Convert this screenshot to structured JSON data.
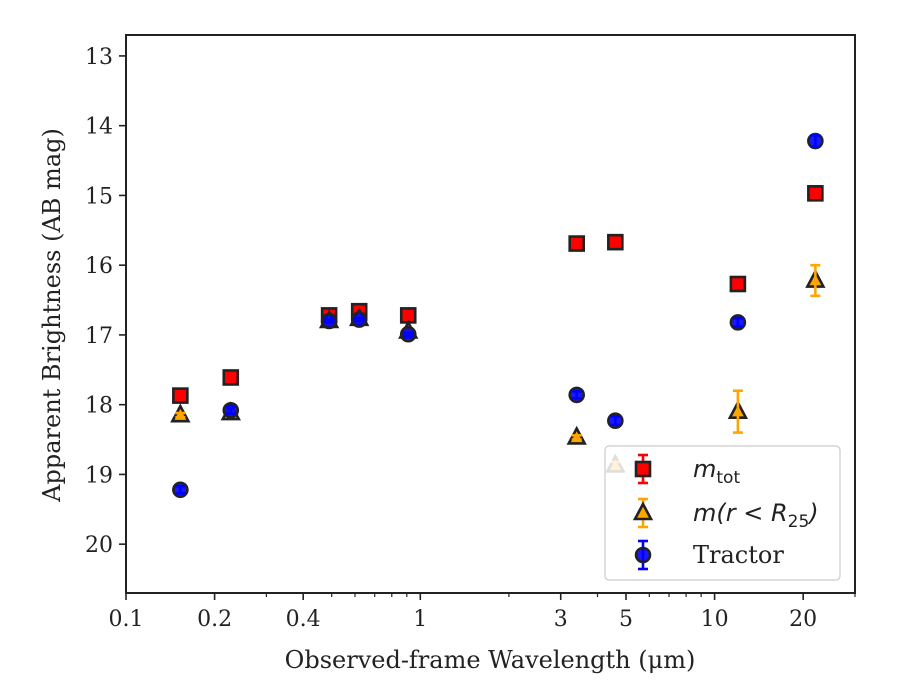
{
  "chart_data": {
    "type": "scatter",
    "title": "",
    "xlabel": "Observed-frame Wavelength (μm)",
    "ylabel": "Apparent Brightness (AB mag)",
    "x_scale": "log",
    "xlim": [
      0.1,
      30
    ],
    "ylim": [
      20.7,
      12.7
    ],
    "y_inverted": true,
    "x_ticks": [
      {
        "value": 0.1,
        "label": "0.1"
      },
      {
        "value": 0.2,
        "label": "0.2"
      },
      {
        "value": 0.4,
        "label": "0.4"
      },
      {
        "value": 1,
        "label": "1"
      },
      {
        "value": 3,
        "label": "3"
      },
      {
        "value": 5,
        "label": "5"
      },
      {
        "value": 10,
        "label": "10"
      },
      {
        "value": 20,
        "label": "20"
      }
    ],
    "y_ticks": [
      13,
      14,
      15,
      16,
      17,
      18,
      19,
      20
    ],
    "grid": false,
    "legend_position": "bottom-right",
    "series": [
      {
        "name": "m_tot",
        "label_main": "m",
        "label_sub": "tot",
        "marker": "square",
        "color": "#ff0000",
        "edge_color": "#222222",
        "error_color": "#ff0000",
        "x": [
          0.153,
          0.227,
          0.49,
          0.62,
          0.91,
          3.4,
          4.6,
          12.0,
          22.0
        ],
        "y": [
          17.87,
          17.61,
          16.72,
          16.66,
          16.72,
          15.69,
          15.67,
          16.27,
          14.97
        ],
        "yerr": [
          0.03,
          0.03,
          0.02,
          0.02,
          0.02,
          0.02,
          0.02,
          0.04,
          0.05
        ]
      },
      {
        "name": "m(r < R25)",
        "label_main": "m(r < R",
        "label_sub": "25",
        "label_tail": ")",
        "marker": "triangle",
        "color": "#ffa500",
        "edge_color": "#222222",
        "error_color": "#ffa500",
        "x": [
          0.153,
          0.227,
          0.49,
          0.62,
          0.91,
          3.4,
          4.6,
          12.0,
          22.0
        ],
        "y": [
          18.15,
          18.12,
          16.8,
          16.77,
          16.95,
          18.47,
          18.87,
          18.1,
          16.22
        ],
        "yerr": [
          0.03,
          0.03,
          0.02,
          0.02,
          0.02,
          0.03,
          0.05,
          0.3,
          0.22
        ]
      },
      {
        "name": "Tractor",
        "marker": "circle",
        "color": "#0000ff",
        "edge_color": "#222222",
        "error_color": "#0000ff",
        "x": [
          0.153,
          0.227,
          0.49,
          0.62,
          0.91,
          3.4,
          4.6,
          12.0,
          22.0
        ],
        "y": [
          19.22,
          18.08,
          16.8,
          16.78,
          16.99,
          17.86,
          18.23,
          16.82,
          14.22
        ],
        "yerr": [
          0.05,
          0.05,
          0.02,
          0.02,
          0.02,
          0.05,
          0.06,
          0.06,
          0.08
        ]
      }
    ]
  }
}
